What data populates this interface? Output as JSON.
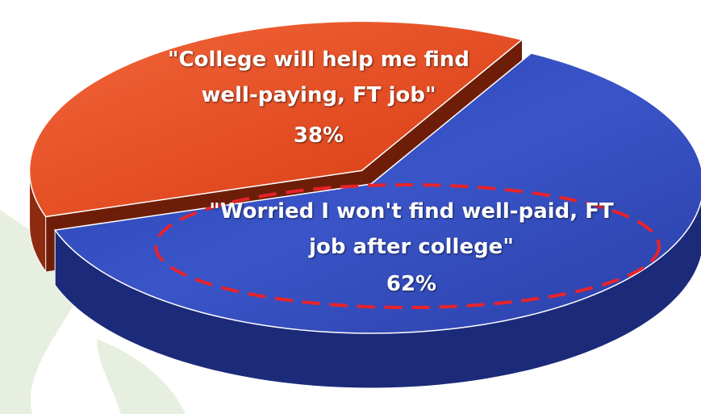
{
  "chart_data": {
    "type": "pie3d",
    "categories": [
      "\"College will help me find well-paying, FT job\"",
      "\"Worried I won't find well-paid, FT job after college\""
    ],
    "values": [
      38,
      62
    ],
    "value_labels": [
      "38%",
      "62%"
    ],
    "colors": [
      "#f04e26",
      "#3048b8"
    ]
  }
}
